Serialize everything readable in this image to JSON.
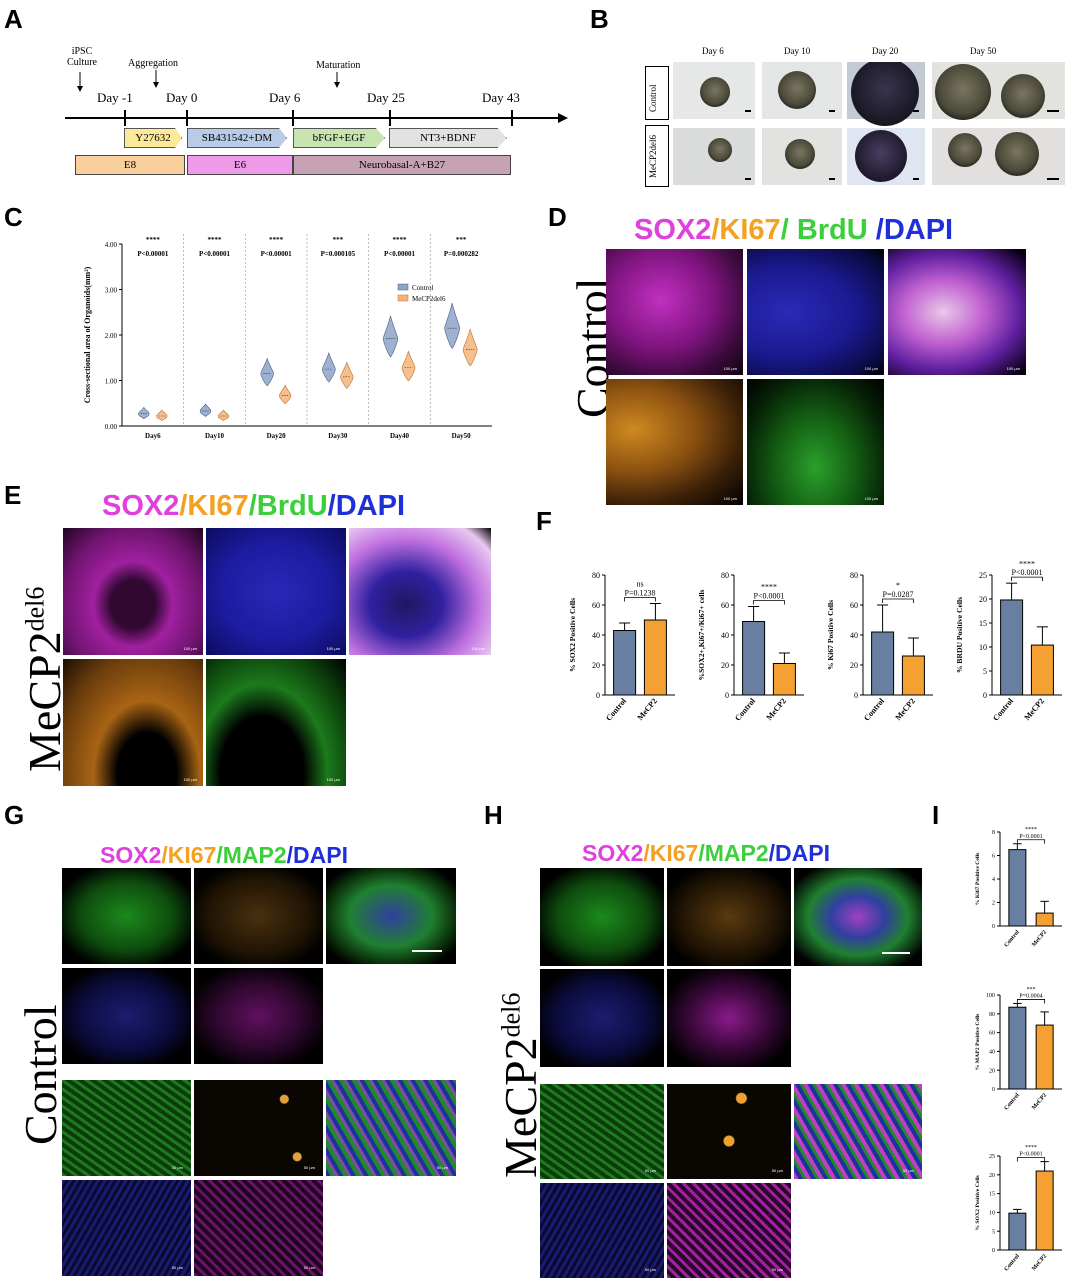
{
  "panels": {
    "A": "A",
    "B": "B",
    "C": "C",
    "D": "D",
    "E": "E",
    "F": "F",
    "G": "G",
    "H": "H",
    "I": "I"
  },
  "timeline": {
    "events": [
      {
        "label": "iPSC\nCulture"
      },
      {
        "label": "Aggregation"
      },
      {
        "label": "Maturation"
      }
    ],
    "days": [
      "Day -1",
      "Day 0",
      "Day 6",
      "Day 25",
      "Day 43"
    ],
    "factors": [
      "Y27632",
      "SB431542+DM",
      "bFGF+EGF",
      "NT3+BDNF"
    ],
    "media": [
      "E8",
      "E6",
      "Neurobasal-A+B27"
    ],
    "colors": {
      "y27632": "#fde99a",
      "sb": "#b8cce8",
      "bfgf": "#c8e4b0",
      "nt3": "#e2e2e2",
      "e8": "#f9cf9e",
      "e6": "#ef9ae8",
      "nb": "#c7a2b4"
    }
  },
  "panel_b": {
    "days": [
      "Day 6",
      "Day 10",
      "Day 20",
      "Day 50"
    ],
    "rows": [
      "Control",
      "MeCP2del6"
    ]
  },
  "stain_titles": {
    "d": [
      "SOX2",
      "/KI67",
      "/ BrdU",
      " /DAPI"
    ],
    "e": [
      "SOX2",
      "/KI67",
      "/BrdU",
      "/DAPI"
    ],
    "g": [
      "SOX2",
      "/KI67",
      "/MAP2",
      "/DAPI"
    ],
    "h": [
      "SOX2",
      "/KI67",
      "/MAP2",
      "/DAPI"
    ]
  },
  "side_labels": {
    "d": "Control",
    "e": "MeCP2",
    "e_sup": "del6",
    "g": "Control",
    "h": "MeCP2",
    "h_sup": "del6"
  },
  "scale_labels": {
    "um100": "100 µm",
    "um50": "50 µm"
  },
  "chart_data": [
    {
      "id": "C",
      "type": "violin",
      "ylabel": "Cross-sectional area of Organoids(mm²)",
      "ylim": [
        0,
        4
      ],
      "yticks": [
        "0.00",
        "1.00",
        "2.00",
        "3.00",
        "4.00"
      ],
      "categories": [
        "Day6",
        "Day10",
        "Day20",
        "Day30",
        "Day40",
        "Day50"
      ],
      "significance": [
        "****",
        "****",
        "****",
        "***",
        "****",
        "***"
      ],
      "pvalues": [
        "P<0.00001",
        "P<0.00001",
        "P<0.00001",
        "P=0.000105",
        "P<0.00001",
        "P=0.000282"
      ],
      "legend": [
        "Control",
        "MeCP2del6"
      ],
      "series": [
        {
          "name": "Control",
          "values": [
            0.27,
            0.33,
            1.15,
            1.25,
            1.92,
            2.15
          ]
        },
        {
          "name": "MeCP2del6",
          "values": [
            0.22,
            0.22,
            0.67,
            1.08,
            1.28,
            1.68
          ]
        }
      ]
    },
    {
      "id": "F1",
      "type": "bar",
      "ylabel": "% SOX2 Positive Cells",
      "ylim": [
        0,
        80
      ],
      "yticks": [
        "0",
        "20",
        "40",
        "60",
        "80"
      ],
      "categories": [
        "Control",
        "MeCP2del6"
      ],
      "values": [
        43,
        50
      ],
      "errors": [
        5,
        11
      ],
      "sig": "ns",
      "p": "P=0.1238"
    },
    {
      "id": "F2",
      "type": "bar",
      "ylabel": "%SOX2+,Ki67+/Ki67+ cells",
      "ylim": [
        0,
        80
      ],
      "yticks": [
        "0",
        "20",
        "40",
        "60",
        "80"
      ],
      "categories": [
        "Control",
        "MeCP2del6"
      ],
      "values": [
        49,
        21
      ],
      "errors": [
        10,
        7
      ],
      "sig": "****",
      "p": "P<0.0001"
    },
    {
      "id": "F3",
      "type": "bar",
      "ylabel": "% Ki67 Positive Cells",
      "ylim": [
        0,
        80
      ],
      "yticks": [
        "0",
        "20",
        "40",
        "60",
        "80"
      ],
      "categories": [
        "Control",
        "MeCP2del6"
      ],
      "values": [
        42,
        26
      ],
      "errors": [
        18,
        12
      ],
      "sig": "*",
      "p": "P=0.0287"
    },
    {
      "id": "F4",
      "type": "bar",
      "ylabel": "% BRDU Positive Cells",
      "ylim": [
        0,
        25
      ],
      "yticks": [
        "0",
        "5",
        "10",
        "15",
        "20",
        "25"
      ],
      "categories": [
        "Control",
        "MeCP2del6"
      ],
      "values": [
        19.8,
        10.4
      ],
      "errors": [
        3.5,
        3.8
      ],
      "sig": "****",
      "p": "P<0.0001"
    },
    {
      "id": "I1",
      "type": "bar",
      "ylabel": "% Ki67 Positive Cells",
      "ylim": [
        0,
        8
      ],
      "yticks": [
        "0",
        "2",
        "4",
        "6",
        "8"
      ],
      "categories": [
        "Control",
        "MeCP2del6"
      ],
      "values": [
        6.5,
        1.1
      ],
      "errors": [
        0.5,
        1.0
      ],
      "sig": "****",
      "p": "P<0.0001"
    },
    {
      "id": "I2",
      "type": "bar",
      "ylabel": "% MAP2 Positive Cells",
      "ylim": [
        0,
        100
      ],
      "yticks": [
        "0",
        "20",
        "40",
        "60",
        "80",
        "100"
      ],
      "categories": [
        "Control",
        "MeCP2del6"
      ],
      "values": [
        87,
        68
      ],
      "errors": [
        4,
        14
      ],
      "sig": "***",
      "p": "P=0.0004"
    },
    {
      "id": "I3",
      "type": "bar",
      "ylabel": "% SOX2 Positive Cells",
      "ylim": [
        0,
        25
      ],
      "yticks": [
        "0",
        "5",
        "10",
        "15",
        "20",
        "25"
      ],
      "categories": [
        "Control",
        "MeCP2del6"
      ],
      "values": [
        9.8,
        21
      ],
      "errors": [
        1.0,
        2.5
      ],
      "sig": "****",
      "p": "P<0.0001"
    }
  ]
}
